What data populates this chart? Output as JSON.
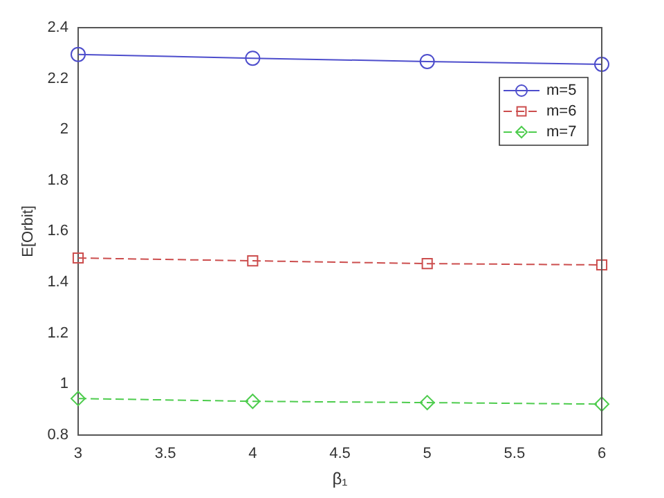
{
  "chart_data": {
    "type": "line",
    "xlabel": "β₁",
    "ylabel": "E[Orbit]",
    "x": [
      3,
      4,
      5,
      6
    ],
    "xlim": [
      3,
      6
    ],
    "xticks": [
      3,
      3.5,
      4,
      4.5,
      5,
      5.5,
      6
    ],
    "ylim": [
      0.8,
      2.4
    ],
    "yticks": [
      0.8,
      1,
      1.2,
      1.4,
      1.6,
      1.8,
      2,
      2.2,
      2.4
    ],
    "grid": false,
    "legend": "top right",
    "series": [
      {
        "name": "m=5",
        "color": "#4d4dcc",
        "marker": "circle",
        "line_style": "solid",
        "values": [
          2.295,
          2.28,
          2.267,
          2.256
        ]
      },
      {
        "name": "m=6",
        "color": "#cc4d4d",
        "marker": "square",
        "line_style": "dashed",
        "values": [
          1.495,
          1.484,
          1.473,
          1.468
        ]
      },
      {
        "name": "m=7",
        "color": "#4dcc4d",
        "marker": "diamond",
        "line_style": "dashed",
        "values": [
          0.943,
          0.932,
          0.927,
          0.921
        ]
      }
    ]
  }
}
